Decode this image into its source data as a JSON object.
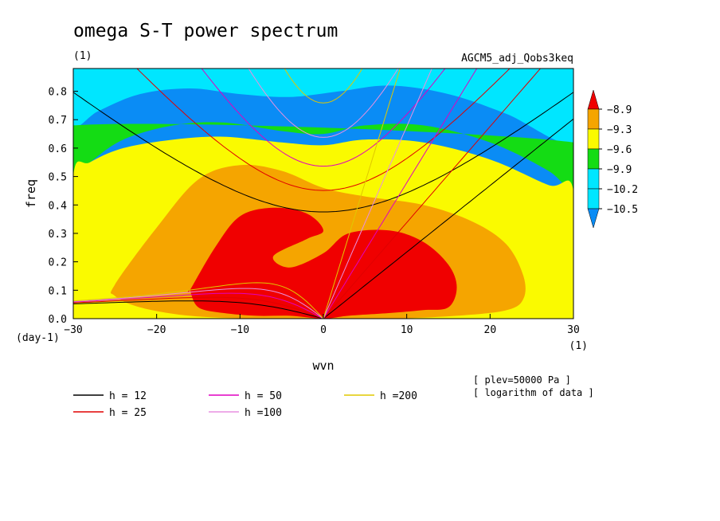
{
  "chart_data": {
    "type": "heatmap",
    "title": "omega S-T power spectrum",
    "subtitle_left": "(1)",
    "subtitle_right": "AGCM5_adj_Qobs3keq",
    "xlabel": "wvn",
    "ylabel": "freq",
    "x_unit": "(1)",
    "y_unit": "(day-1)",
    "xlim": [
      -30,
      30
    ],
    "ylim": [
      0,
      0.88
    ],
    "xticks": [
      -30,
      -20,
      -10,
      0,
      10,
      20,
      30
    ],
    "yticks": [
      0.0,
      0.1,
      0.2,
      0.3,
      0.4,
      0.5,
      0.6,
      0.7,
      0.8
    ],
    "xtick_labels": [
      "−30",
      "−20",
      "−10",
      "0",
      "10",
      "20",
      "30"
    ],
    "ytick_labels": [
      "0.0",
      "0.1",
      "0.2",
      "0.3",
      "0.4",
      "0.5",
      "0.6",
      "0.7",
      "0.8"
    ],
    "colorbar": {
      "labels": [
        "−8.9",
        "−9.3",
        "−9.6",
        "−9.9",
        "−10.2",
        "−10.5"
      ],
      "levels": [
        -8.9,
        -9.3,
        -9.6,
        -9.9,
        -10.2,
        -10.5
      ],
      "colors": [
        "#0a8cf5",
        "#00e6ff",
        "#14dc14",
        "#fafa00",
        "#f5a500",
        "#f00000"
      ]
    },
    "fill_levels": [
      {
        "color": "#1e64f0",
        "x": [
          18,
          30.5,
          30.5,
          28,
          24,
          21,
          18
        ],
        "y": [
          0.88,
          0.88,
          0.76,
          0.77,
          0.8,
          0.84,
          0.88
        ]
      },
      {
        "color": "#00e6ff",
        "x": [
          -30,
          30,
          30,
          22,
          15,
          8,
          2,
          -4,
          -10,
          -16,
          -22,
          -27,
          -30
        ],
        "y": [
          0.88,
          0.88,
          0.62,
          0.72,
          0.79,
          0.82,
          0.8,
          0.78,
          0.79,
          0.81,
          0.79,
          0.73,
          0.68
        ]
      },
      {
        "color": "#14dc14",
        "x": [
          -30,
          30,
          30,
          27,
          20,
          12,
          5,
          0,
          -5,
          -12,
          -18,
          -24,
          -28,
          -30
        ],
        "y": [
          0.68,
          0.62,
          0.45,
          0.52,
          0.62,
          0.68,
          0.68,
          0.65,
          0.66,
          0.69,
          0.68,
          0.63,
          0.55,
          0.5
        ]
      },
      {
        "color": "#fafa00",
        "x": [
          -30,
          -28,
          -24,
          -18,
          -12,
          -5,
          0,
          5,
          12,
          20,
          27,
          30,
          30,
          30,
          -30
        ],
        "y": [
          0.5,
          0.55,
          0.6,
          0.63,
          0.64,
          0.62,
          0.61,
          0.63,
          0.62,
          0.56,
          0.47,
          0.45,
          0.0,
          0.0,
          0.0
        ]
      },
      {
        "color": "#f5a500",
        "x": [
          -25,
          -20,
          -15,
          -10,
          -5,
          0,
          5,
          12,
          18,
          22,
          24,
          24,
          22,
          16,
          8,
          0,
          -8,
          -16,
          -22,
          -25
        ],
        "y": [
          0.12,
          0.32,
          0.49,
          0.54,
          0.52,
          0.46,
          0.43,
          0.4,
          0.34,
          0.26,
          0.15,
          0.07,
          0.03,
          0.01,
          0.0,
          0.0,
          0.0,
          0.01,
          0.04,
          0.08
        ]
      },
      {
        "color": "#f00000",
        "x": [
          -16,
          -13,
          -10,
          -6,
          -2,
          0,
          -2,
          -6,
          -4,
          0,
          3,
          8,
          12,
          15,
          16,
          15,
          12,
          8,
          3,
          0,
          -4,
          -8,
          -12,
          -15,
          -16
        ],
        "y": [
          0.1,
          0.25,
          0.36,
          0.39,
          0.37,
          0.31,
          0.28,
          0.22,
          0.18,
          0.23,
          0.3,
          0.31,
          0.27,
          0.19,
          0.11,
          0.04,
          0.03,
          0.02,
          0.01,
          0.0,
          0.01,
          0.01,
          0.02,
          0.04,
          0.1
        ]
      }
    ],
    "series": [
      {
        "name": "h = 12",
        "color": "#000000",
        "h": 12
      },
      {
        "name": "h = 25",
        "color": "#e00000",
        "h": 25
      },
      {
        "name": "h = 50",
        "color": "#e000c0",
        "h": 50
      },
      {
        "name": "h =100",
        "color": "#e890e0",
        "h": 100
      },
      {
        "name": "h =200",
        "color": "#e0c800",
        "h": 200
      }
    ],
    "annotations": [
      "[ plev=50000 Pa ]",
      "[ logarithm of data ]"
    ],
    "grid": false,
    "legend_position": "bottom-left"
  }
}
